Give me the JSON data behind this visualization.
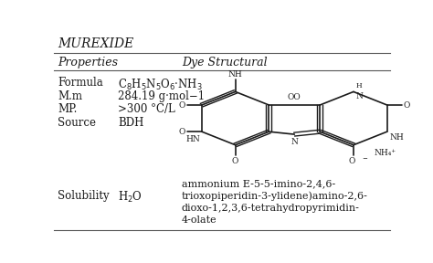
{
  "title": "MUREXIDE",
  "col1_header": "Properties",
  "col2_header": "Dye Structural",
  "rows": [
    {
      "prop": "Formula",
      "val": "C$_8$H$_5$N$_5$O$_6$·NH$_3$"
    },
    {
      "prop": "M.m",
      "val": "284.19 g·mol−1"
    },
    {
      "prop": "MP.",
      "val": ">300 °C/L"
    },
    {
      "prop": "Source",
      "val": "BDH"
    },
    {
      "prop": "",
      "val": ""
    },
    {
      "prop": "Solubility",
      "val": "H$_2$O"
    }
  ],
  "iupac_line1": "ammonium E-5-5-imino-2,4,6-",
  "iupac_line2": "trioxopiperidin-3-ylidene)amino-2,6-",
  "iupac_line3": "dioxo-1,2,3,6-tetrahydropyrimidin-",
  "iupac_line4": "4-olate",
  "text_color": "#1a1a1a",
  "line_color": "#555555",
  "title_fontsize": 10,
  "header_fontsize": 9,
  "body_fontsize": 8.5,
  "fig_width": 4.74,
  "fig_height": 2.88,
  "dpi": 100
}
